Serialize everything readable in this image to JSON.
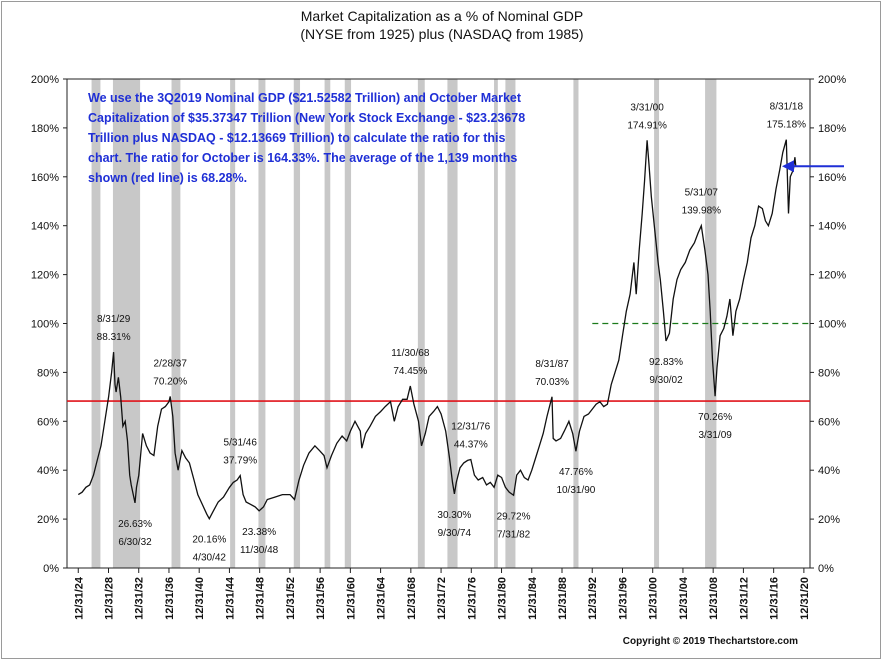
{
  "chart_data": {
    "type": "line",
    "title": "Market Capitalization as a % of Nominal GDP",
    "subtitle": "(NYSE from 1925) plus (NASDAQ from 1985)",
    "x_tick_labels": [
      "12/31/24",
      "12/31/28",
      "12/31/32",
      "12/31/36",
      "12/31/40",
      "12/31/44",
      "12/31/48",
      "12/31/52",
      "12/31/56",
      "12/31/60",
      "12/31/64",
      "12/31/68",
      "12/31/72",
      "12/31/76",
      "12/31/80",
      "12/31/84",
      "12/31/88",
      "12/31/92",
      "12/31/96",
      "12/31/00",
      "12/31/04",
      "12/31/08",
      "12/31/12",
      "12/31/16",
      "12/31/20"
    ],
    "x_tick_years": [
      1924.99,
      1928.99,
      1932.99,
      1936.99,
      1940.99,
      1944.99,
      1948.99,
      1952.99,
      1956.99,
      1960.99,
      1964.99,
      1968.99,
      1972.99,
      1976.99,
      1980.99,
      1984.99,
      1988.99,
      1992.99,
      1996.99,
      2000.99,
      2004.99,
      2008.99,
      2012.99,
      2016.99,
      2020.99
    ],
    "y_tick_labels": [
      "0%",
      "20%",
      "40%",
      "60%",
      "80%",
      "100%",
      "120%",
      "140%",
      "160%",
      "180%",
      "200%"
    ],
    "ylim": [
      0,
      200
    ],
    "average": {
      "value": 68.28,
      "color": "#e0141b"
    },
    "reference_line": {
      "value": 100,
      "color": "#1b7a1b",
      "dashed": true
    },
    "arrow_value": 164.33,
    "arrow_color": "#1f2fd6",
    "shade_color": "#c8c8c8",
    "recessions": [
      [
        1926.75,
        1927.92
      ],
      [
        1929.58,
        1933.17
      ],
      [
        1937.33,
        1938.5
      ],
      [
        1945.08,
        1945.75
      ],
      [
        1948.83,
        1949.75
      ],
      [
        1953.5,
        1954.33
      ],
      [
        1957.58,
        1958.33
      ],
      [
        1960.25,
        1961.08
      ],
      [
        1969.92,
        1970.83
      ],
      [
        1973.83,
        1975.17
      ],
      [
        1980.0,
        1980.5
      ],
      [
        1981.5,
        1982.83
      ],
      [
        1990.5,
        1991.17
      ],
      [
        2001.17,
        2001.83
      ],
      [
        2007.92,
        2009.42
      ]
    ],
    "series": [
      {
        "color": "#111111",
        "points": [
          [
            1925.0,
            30
          ],
          [
            1925.5,
            31
          ],
          [
            1926.0,
            33
          ],
          [
            1926.5,
            34
          ],
          [
            1927.0,
            38
          ],
          [
            1927.5,
            44
          ],
          [
            1928.0,
            50
          ],
          [
            1928.5,
            60
          ],
          [
            1929.0,
            70
          ],
          [
            1929.4,
            80
          ],
          [
            1929.67,
            88.31
          ],
          [
            1929.85,
            75
          ],
          [
            1930.0,
            72
          ],
          [
            1930.3,
            78
          ],
          [
            1930.6,
            70
          ],
          [
            1930.9,
            58
          ],
          [
            1931.2,
            60
          ],
          [
            1931.5,
            52
          ],
          [
            1931.8,
            38
          ],
          [
            1932.0,
            34
          ],
          [
            1932.5,
            26.63
          ],
          [
            1932.7,
            33
          ],
          [
            1933.0,
            38
          ],
          [
            1933.5,
            55
          ],
          [
            1934.0,
            50
          ],
          [
            1934.5,
            47
          ],
          [
            1935.0,
            46
          ],
          [
            1935.5,
            58
          ],
          [
            1936.0,
            65
          ],
          [
            1936.5,
            66
          ],
          [
            1937.0,
            68
          ],
          [
            1937.16,
            70.2
          ],
          [
            1937.5,
            62
          ],
          [
            1937.8,
            47
          ],
          [
            1938.2,
            40
          ],
          [
            1938.7,
            48
          ],
          [
            1939.2,
            45
          ],
          [
            1939.7,
            43
          ],
          [
            1940.3,
            36
          ],
          [
            1940.8,
            30
          ],
          [
            1941.4,
            26
          ],
          [
            1942.0,
            22
          ],
          [
            1942.33,
            20.16
          ],
          [
            1942.8,
            23
          ],
          [
            1943.5,
            27
          ],
          [
            1944.2,
            29
          ],
          [
            1945.0,
            33
          ],
          [
            1945.5,
            35
          ],
          [
            1946.0,
            36
          ],
          [
            1946.42,
            37.79
          ],
          [
            1946.8,
            30
          ],
          [
            1947.2,
            27
          ],
          [
            1947.8,
            26
          ],
          [
            1948.4,
            25
          ],
          [
            1948.92,
            23.38
          ],
          [
            1949.5,
            25
          ],
          [
            1950.0,
            28
          ],
          [
            1951.0,
            29
          ],
          [
            1952.0,
            30
          ],
          [
            1953.0,
            30
          ],
          [
            1953.6,
            28
          ],
          [
            1954.2,
            36
          ],
          [
            1954.8,
            42
          ],
          [
            1955.5,
            47
          ],
          [
            1956.3,
            50
          ],
          [
            1956.9,
            48
          ],
          [
            1957.5,
            46
          ],
          [
            1957.9,
            41
          ],
          [
            1958.5,
            46
          ],
          [
            1959.2,
            51
          ],
          [
            1959.9,
            54
          ],
          [
            1960.5,
            52
          ],
          [
            1961.0,
            56
          ],
          [
            1961.6,
            60
          ],
          [
            1962.3,
            56
          ],
          [
            1962.5,
            49
          ],
          [
            1963.0,
            55
          ],
          [
            1963.6,
            58
          ],
          [
            1964.3,
            62
          ],
          [
            1965.0,
            64
          ],
          [
            1965.6,
            66
          ],
          [
            1966.3,
            68
          ],
          [
            1966.8,
            60
          ],
          [
            1967.3,
            66
          ],
          [
            1967.9,
            69
          ],
          [
            1968.5,
            69
          ],
          [
            1968.92,
            74.45
          ],
          [
            1969.4,
            67
          ],
          [
            1970.0,
            60
          ],
          [
            1970.4,
            50
          ],
          [
            1970.9,
            55
          ],
          [
            1971.4,
            62
          ],
          [
            1972.0,
            64
          ],
          [
            1972.5,
            66
          ],
          [
            1973.0,
            63
          ],
          [
            1973.6,
            56
          ],
          [
            1974.1,
            45
          ],
          [
            1974.5,
            35
          ],
          [
            1974.75,
            30.3
          ],
          [
            1975.0,
            35
          ],
          [
            1975.5,
            41
          ],
          [
            1976.0,
            43
          ],
          [
            1976.5,
            44
          ],
          [
            1976.92,
            44.37
          ],
          [
            1977.4,
            38
          ],
          [
            1977.9,
            36
          ],
          [
            1978.5,
            37
          ],
          [
            1979.0,
            34
          ],
          [
            1979.5,
            35
          ],
          [
            1980.0,
            33
          ],
          [
            1980.5,
            38
          ],
          [
            1981.0,
            37
          ],
          [
            1981.5,
            33
          ],
          [
            1982.0,
            31
          ],
          [
            1982.58,
            29.72
          ],
          [
            1983.0,
            38
          ],
          [
            1983.5,
            40
          ],
          [
            1984.0,
            37
          ],
          [
            1984.5,
            36
          ],
          [
            1985.0,
            40
          ],
          [
            1985.5,
            45
          ],
          [
            1986.0,
            50
          ],
          [
            1986.5,
            55
          ],
          [
            1987.0,
            62
          ],
          [
            1987.67,
            70.03
          ],
          [
            1987.83,
            53
          ],
          [
            1988.2,
            52
          ],
          [
            1988.8,
            53
          ],
          [
            1989.3,
            56
          ],
          [
            1989.9,
            60
          ],
          [
            1990.4,
            55
          ],
          [
            1990.83,
            47.76
          ],
          [
            1991.3,
            56
          ],
          [
            1991.9,
            62
          ],
          [
            1992.5,
            63
          ],
          [
            1993.0,
            65
          ],
          [
            1993.5,
            67
          ],
          [
            1994.0,
            68
          ],
          [
            1994.5,
            66
          ],
          [
            1995.0,
            67
          ],
          [
            1995.5,
            75
          ],
          [
            1996.0,
            80
          ],
          [
            1996.5,
            85
          ],
          [
            1997.0,
            95
          ],
          [
            1997.5,
            105
          ],
          [
            1998.0,
            112
          ],
          [
            1998.5,
            125
          ],
          [
            1998.8,
            112
          ],
          [
            1999.2,
            130
          ],
          [
            1999.6,
            145
          ],
          [
            1999.9,
            158
          ],
          [
            2000.25,
            174.91
          ],
          [
            2000.5,
            165
          ],
          [
            2000.8,
            152
          ],
          [
            2001.2,
            140
          ],
          [
            2001.7,
            125
          ],
          [
            2002.0,
            118
          ],
          [
            2002.4,
            105
          ],
          [
            2002.75,
            92.83
          ],
          [
            2003.2,
            96
          ],
          [
            2003.7,
            110
          ],
          [
            2004.2,
            118
          ],
          [
            2004.7,
            122
          ],
          [
            2005.3,
            125
          ],
          [
            2005.9,
            130
          ],
          [
            2006.5,
            133
          ],
          [
            2007.0,
            137
          ],
          [
            2007.42,
            139.98
          ],
          [
            2007.9,
            130
          ],
          [
            2008.3,
            120
          ],
          [
            2008.6,
            105
          ],
          [
            2008.9,
            85
          ],
          [
            2009.25,
            70.26
          ],
          [
            2009.5,
            82
          ],
          [
            2009.9,
            95
          ],
          [
            2010.4,
            98
          ],
          [
            2010.8,
            103
          ],
          [
            2011.2,
            110
          ],
          [
            2011.6,
            95
          ],
          [
            2012.0,
            105
          ],
          [
            2012.5,
            110
          ],
          [
            2013.0,
            118
          ],
          [
            2013.5,
            125
          ],
          [
            2014.0,
            135
          ],
          [
            2014.5,
            140
          ],
          [
            2015.0,
            148
          ],
          [
            2015.5,
            147
          ],
          [
            2015.9,
            142
          ],
          [
            2016.3,
            140
          ],
          [
            2016.8,
            145
          ],
          [
            2017.3,
            155
          ],
          [
            2017.8,
            163
          ],
          [
            2018.2,
            170
          ],
          [
            2018.67,
            175.18
          ],
          [
            2018.95,
            145
          ],
          [
            2019.2,
            160
          ],
          [
            2019.6,
            163
          ],
          [
            2019.8,
            168
          ],
          [
            2019.92,
            164.33
          ]
        ]
      }
    ],
    "annotations": [
      {
        "lines": [
          "8/31/29",
          "88.31%"
        ],
        "x": 1929.67,
        "y": 88.31,
        "pos": "above"
      },
      {
        "lines": [
          "2/28/37",
          "70.20%"
        ],
        "x": 1937.16,
        "y": 70.2,
        "pos": "above"
      },
      {
        "lines": [
          "11/30/68",
          "74.45%"
        ],
        "x": 1968.92,
        "y": 74.45,
        "pos": "above"
      },
      {
        "lines": [
          "8/31/87",
          "70.03%"
        ],
        "x": 1987.67,
        "y": 70.03,
        "pos": "above"
      },
      {
        "lines": [
          "3/31/00",
          "174.91%"
        ],
        "x": 2000.25,
        "y": 174.91,
        "pos": "above"
      },
      {
        "lines": [
          "5/31/07",
          "139.98%"
        ],
        "x": 2007.42,
        "y": 139.98,
        "pos": "above"
      },
      {
        "lines": [
          "8/31/18",
          "175.18%"
        ],
        "x": 2018.67,
        "y": 175.18,
        "pos": "above"
      },
      {
        "lines": [
          "5/31/46",
          "37.79%"
        ],
        "x": 1946.42,
        "y": 37.79,
        "pos": "above"
      },
      {
        "lines": [
          "12/31/76",
          "44.37%"
        ],
        "x": 1976.92,
        "y": 44.37,
        "pos": "above"
      },
      {
        "lines": [
          "26.63%",
          "6/30/32"
        ],
        "x": 1932.5,
        "y": 26.63,
        "pos": "below"
      },
      {
        "lines": [
          "20.16%",
          "4/30/42"
        ],
        "x": 1942.33,
        "y": 20.16,
        "pos": "below"
      },
      {
        "lines": [
          "23.38%",
          "11/30/48"
        ],
        "x": 1948.92,
        "y": 23.38,
        "pos": "below"
      },
      {
        "lines": [
          "30.30%",
          "9/30/74"
        ],
        "x": 1974.75,
        "y": 30.3,
        "pos": "below"
      },
      {
        "lines": [
          "29.72%",
          "7/31/82"
        ],
        "x": 1982.58,
        "y": 29.72,
        "pos": "below"
      },
      {
        "lines": [
          "47.76%",
          "10/31/90"
        ],
        "x": 1990.83,
        "y": 47.76,
        "pos": "below"
      },
      {
        "lines": [
          "92.83%",
          "9/30/02"
        ],
        "x": 2002.75,
        "y": 92.83,
        "pos": "below"
      },
      {
        "lines": [
          "70.26%",
          "3/31/09"
        ],
        "x": 2009.25,
        "y": 70.26,
        "pos": "below"
      }
    ],
    "note": {
      "color": "#1f2fd6",
      "lines": [
        "We use the 3Q2019 Nominal GDP ($21.52582 Trillion) and October Market",
        "Capitalization of $35.37347 Trillion (New York Stock Exchange - $23.23678",
        "Trillion plus NASDAQ - $12.13669 Trillion) to calculate the ratio for this",
        "chart.  The ratio for October is 164.33%.  The average of the 1,139 months",
        "shown (red line) is 68.28%."
      ]
    }
  },
  "copyright": "Copyright © 2019 Thechartstore.com"
}
